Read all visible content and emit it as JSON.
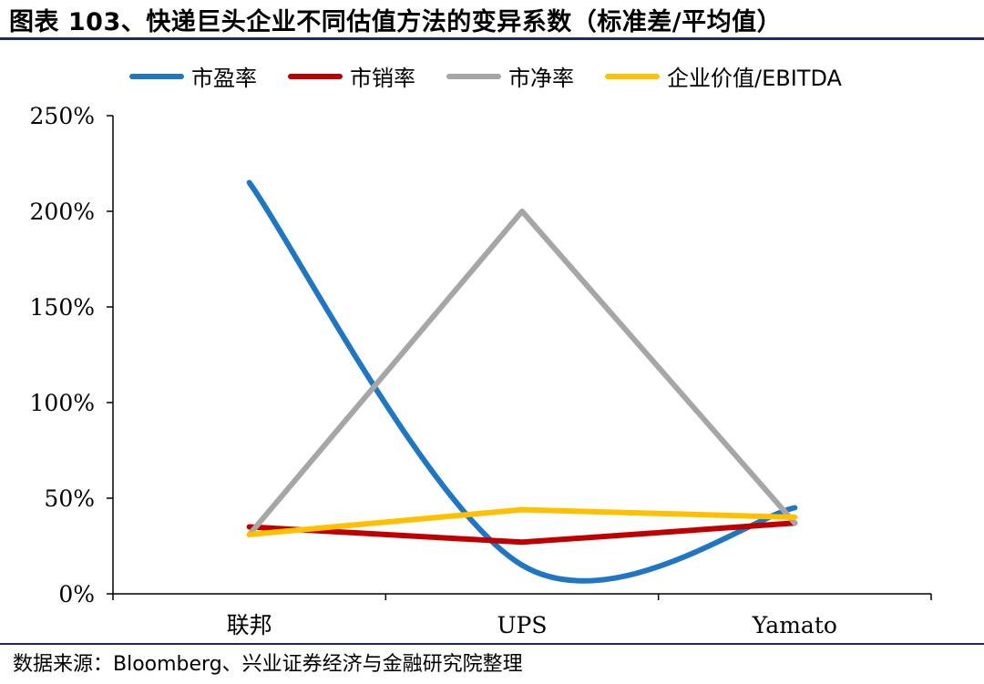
{
  "title": "图表 103、快递巨头企业不同估值方法的变异系数（标准差/平均值）",
  "source": "数据来源：Bloomberg、兴业证券经济与金融研究院整理",
  "chart_data": {
    "type": "line",
    "title": "图表 103、快递巨头企业不同估值方法的变异系数（标准差/平均值）",
    "categories": [
      "联邦",
      "UPS",
      "Yamato"
    ],
    "y_ticks": [
      "0%",
      "50%",
      "100%",
      "150%",
      "200%",
      "250%"
    ],
    "ylim": [
      0,
      250
    ],
    "yunit": "%",
    "grid": false,
    "legend_position": "top",
    "series": [
      {
        "name": "市盈率",
        "values": [
          215,
          15,
          45
        ],
        "color": "#1f77c4",
        "smooth": true
      },
      {
        "name": "市销率",
        "values": [
          35,
          27,
          37
        ],
        "color": "#c00000",
        "smooth": false
      },
      {
        "name": "市净率",
        "values": [
          31,
          200,
          37
        ],
        "color": "#a6a6a6",
        "smooth": false
      },
      {
        "name": "企业价值/EBITDA",
        "values": [
          31,
          44,
          40
        ],
        "color": "#ffc000",
        "smooth": false
      }
    ]
  }
}
